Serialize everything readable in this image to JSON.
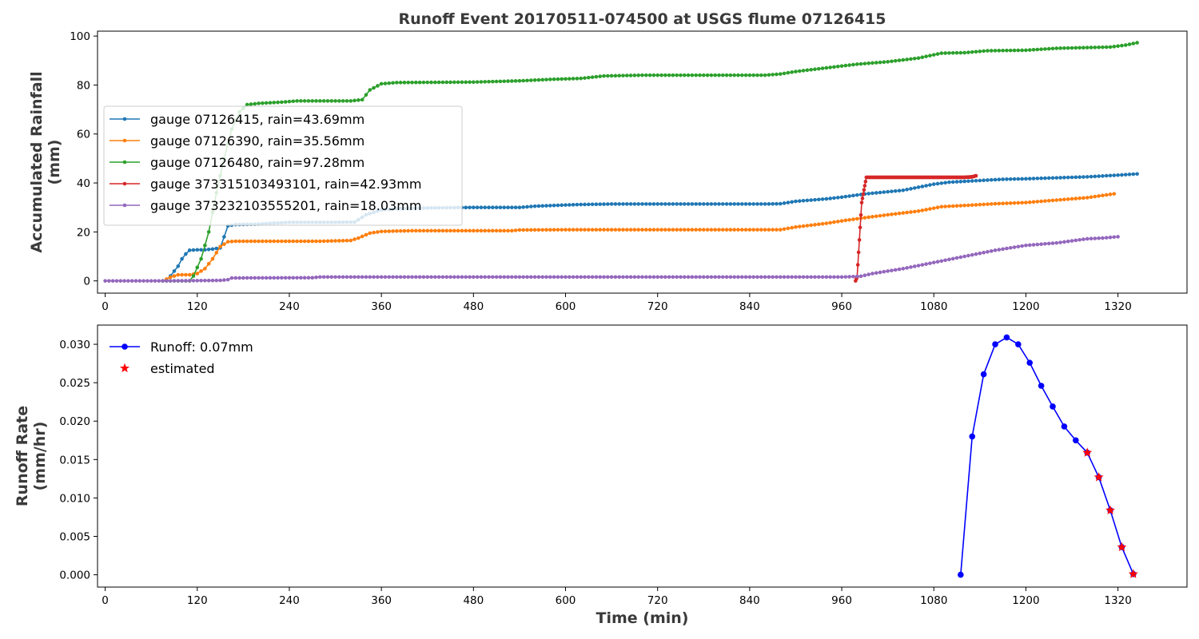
{
  "chart_data": [
    {
      "type": "line",
      "title": "Runoff Event 20170511-074500 at USGS flume 07126415",
      "xlabel": "",
      "ylabel": "Accumulated Rainfall\n(mm)",
      "xlim": [
        -10,
        1410
      ],
      "ylim": [
        -5,
        102
      ],
      "xticks": [
        0,
        120,
        240,
        360,
        480,
        600,
        720,
        840,
        960,
        1080,
        1200,
        1320
      ],
      "yticks": [
        0,
        20,
        40,
        60,
        80,
        100
      ],
      "legend_position": "center-left",
      "series": [
        {
          "name": "gauge 07126415, rain=43.69mm",
          "color": "#1f77b4",
          "marker_step": 5,
          "points": [
            [
              75,
              0
            ],
            [
              80,
              0.5
            ],
            [
              85,
              2
            ],
            [
              90,
              4
            ],
            [
              95,
              6
            ],
            [
              100,
              9
            ],
            [
              105,
              11
            ],
            [
              110,
              12.5
            ],
            [
              120,
              12.7
            ],
            [
              130,
              12.7
            ],
            [
              140,
              13
            ],
            [
              150,
              13.5
            ],
            [
              155,
              18
            ],
            [
              160,
              22.5
            ],
            [
              170,
              23
            ],
            [
              200,
              23.2
            ],
            [
              220,
              23.6
            ],
            [
              240,
              23.9
            ],
            [
              300,
              23.9
            ],
            [
              325,
              24
            ],
            [
              330,
              25
            ],
            [
              340,
              27
            ],
            [
              350,
              28
            ],
            [
              360,
              29
            ],
            [
              380,
              29.5
            ],
            [
              420,
              29.8
            ],
            [
              480,
              30
            ],
            [
              540,
              30
            ],
            [
              560,
              30.5
            ],
            [
              600,
              31
            ],
            [
              620,
              31.2
            ],
            [
              660,
              31.4
            ],
            [
              860,
              31.4
            ],
            [
              880,
              31.5
            ],
            [
              900,
              32.5
            ],
            [
              940,
              33.5
            ],
            [
              960,
              34.2
            ],
            [
              990,
              35.5
            ],
            [
              1040,
              37
            ],
            [
              1080,
              39.5
            ],
            [
              1100,
              40.3
            ],
            [
              1140,
              41
            ],
            [
              1170,
              41.5
            ],
            [
              1200,
              41.7
            ],
            [
              1240,
              42.1
            ],
            [
              1280,
              42.5
            ],
            [
              1320,
              43.2
            ],
            [
              1345,
              43.69
            ]
          ]
        },
        {
          "name": "gauge 07126390, rain=35.56mm",
          "color": "#ff7f0e",
          "marker_step": 5,
          "points": [
            [
              75,
              0
            ],
            [
              85,
              1.5
            ],
            [
              95,
              2.5
            ],
            [
              110,
              2.5
            ],
            [
              120,
              3
            ],
            [
              130,
              5
            ],
            [
              140,
              9
            ],
            [
              150,
              14
            ],
            [
              160,
              16
            ],
            [
              170,
              16.2
            ],
            [
              220,
              16.2
            ],
            [
              280,
              16.2
            ],
            [
              320,
              16.5
            ],
            [
              330,
              17.5
            ],
            [
              345,
              19.5
            ],
            [
              360,
              20.2
            ],
            [
              400,
              20.5
            ],
            [
              480,
              20.5
            ],
            [
              530,
              20.5
            ],
            [
              540,
              20.8
            ],
            [
              600,
              20.9
            ],
            [
              700,
              20.9
            ],
            [
              800,
              20.9
            ],
            [
              880,
              20.9
            ],
            [
              900,
              22
            ],
            [
              940,
              23.5
            ],
            [
              960,
              24.5
            ],
            [
              990,
              25.8
            ],
            [
              1020,
              27
            ],
            [
              1060,
              28.5
            ],
            [
              1090,
              30.3
            ],
            [
              1120,
              30.8
            ],
            [
              1160,
              31.5
            ],
            [
              1200,
              32
            ],
            [
              1240,
              33
            ],
            [
              1280,
              34
            ],
            [
              1315,
              35.56
            ]
          ]
        },
        {
          "name": "gauge 07126480, rain=97.28mm",
          "color": "#2ca02c",
          "marker_step": 5,
          "points": [
            [
              75,
              0
            ],
            [
              110,
              0
            ],
            [
              115,
              2
            ],
            [
              125,
              9
            ],
            [
              135,
              20
            ],
            [
              145,
              36
            ],
            [
              155,
              50
            ],
            [
              165,
              62
            ],
            [
              175,
              69
            ],
            [
              185,
              72
            ],
            [
              200,
              72.5
            ],
            [
              230,
              73
            ],
            [
              250,
              73.5
            ],
            [
              320,
              73.5
            ],
            [
              335,
              74
            ],
            [
              345,
              78
            ],
            [
              360,
              80.5
            ],
            [
              380,
              81
            ],
            [
              480,
              81.2
            ],
            [
              540,
              81.7
            ],
            [
              580,
              82.3
            ],
            [
              620,
              82.7
            ],
            [
              650,
              83.7
            ],
            [
              700,
              84
            ],
            [
              860,
              84
            ],
            [
              880,
              84.5
            ],
            [
              900,
              85.5
            ],
            [
              940,
              87
            ],
            [
              980,
              88.5
            ],
            [
              1020,
              89.5
            ],
            [
              1060,
              91
            ],
            [
              1090,
              93
            ],
            [
              1120,
              93.2
            ],
            [
              1150,
              94
            ],
            [
              1200,
              94.2
            ],
            [
              1240,
              95
            ],
            [
              1310,
              95.5
            ],
            [
              1330,
              96.3
            ],
            [
              1345,
              97.28
            ]
          ]
        },
        {
          "name": "gauge 373315103493101, rain=42.93mm",
          "color": "#d62728",
          "marker_step": 1,
          "points": [
            [
              978,
              0
            ],
            [
              980,
              1.5
            ],
            [
              986,
              32
            ],
            [
              992,
              42.3
            ],
            [
              1000,
              42.3
            ],
            [
              1010,
              42.3
            ],
            [
              1020,
              42.3
            ],
            [
              1030,
              42.3
            ],
            [
              1040,
              42.3
            ],
            [
              1050,
              42.3
            ],
            [
              1060,
              42.3
            ],
            [
              1070,
              42.3
            ],
            [
              1080,
              42.3
            ],
            [
              1090,
              42.3
            ],
            [
              1100,
              42.3
            ],
            [
              1110,
              42.3
            ],
            [
              1120,
              42.3
            ],
            [
              1130,
              42.5
            ],
            [
              1135,
              42.93
            ]
          ]
        },
        {
          "name": "gauge 373232103555201, rain=18.03mm",
          "color": "#9467bd",
          "marker_step": 5,
          "points": [
            [
              0,
              0
            ],
            [
              80,
              0
            ],
            [
              150,
              0.2
            ],
            [
              160,
              0.5
            ],
            [
              165,
              1.2
            ],
            [
              270,
              1.3
            ],
            [
              280,
              1.6
            ],
            [
              480,
              1.6
            ],
            [
              960,
              1.6
            ],
            [
              970,
              1.7
            ],
            [
              985,
              1.9
            ],
            [
              1000,
              3
            ],
            [
              1040,
              5
            ],
            [
              1080,
              7.5
            ],
            [
              1120,
              10
            ],
            [
              1160,
              12.5
            ],
            [
              1200,
              14.5
            ],
            [
              1240,
              15.5
            ],
            [
              1280,
              17.2
            ],
            [
              1300,
              17.5
            ],
            [
              1320,
              18.03
            ]
          ]
        }
      ]
    },
    {
      "type": "line",
      "title": "",
      "xlabel": "Time (min)",
      "ylabel": "Runoff Rate\n(mm/hr)",
      "xlim": [
        -10,
        1410
      ],
      "ylim": [
        -0.0016,
        0.0325
      ],
      "xticks": [
        0,
        120,
        240,
        360,
        480,
        600,
        720,
        840,
        960,
        1080,
        1200,
        1320
      ],
      "yticks": [
        0.0,
        0.005,
        0.01,
        0.015,
        0.02,
        0.025,
        0.03
      ],
      "ytick_labels": [
        "0.000",
        "0.005",
        "0.010",
        "0.015",
        "0.020",
        "0.025",
        "0.030"
      ],
      "legend_position": "top-left",
      "series": [
        {
          "name": "Runoff: 0.07mm",
          "color": "#0000ff",
          "marker": "circle",
          "points": [
            [
              1115,
              0
            ],
            [
              1130,
              0.018
            ],
            [
              1145,
              0.0261
            ],
            [
              1160,
              0.03
            ],
            [
              1175,
              0.0309
            ],
            [
              1190,
              0.03
            ],
            [
              1205,
              0.0276
            ],
            [
              1220,
              0.0246
            ],
            [
              1235,
              0.0219
            ],
            [
              1250,
              0.0193
            ],
            [
              1265,
              0.0175
            ],
            [
              1280,
              0.0159
            ],
            [
              1295,
              0.0127
            ],
            [
              1310,
              0.0084
            ],
            [
              1325,
              0.0036
            ],
            [
              1340,
              0.0001
            ]
          ]
        },
        {
          "name": "estimated",
          "color": "#ff0000",
          "marker": "star",
          "points": [
            [
              1280,
              0.0159
            ],
            [
              1295,
              0.0127
            ],
            [
              1310,
              0.0084
            ],
            [
              1325,
              0.0036
            ],
            [
              1340,
              0.0001
            ]
          ]
        }
      ]
    }
  ]
}
